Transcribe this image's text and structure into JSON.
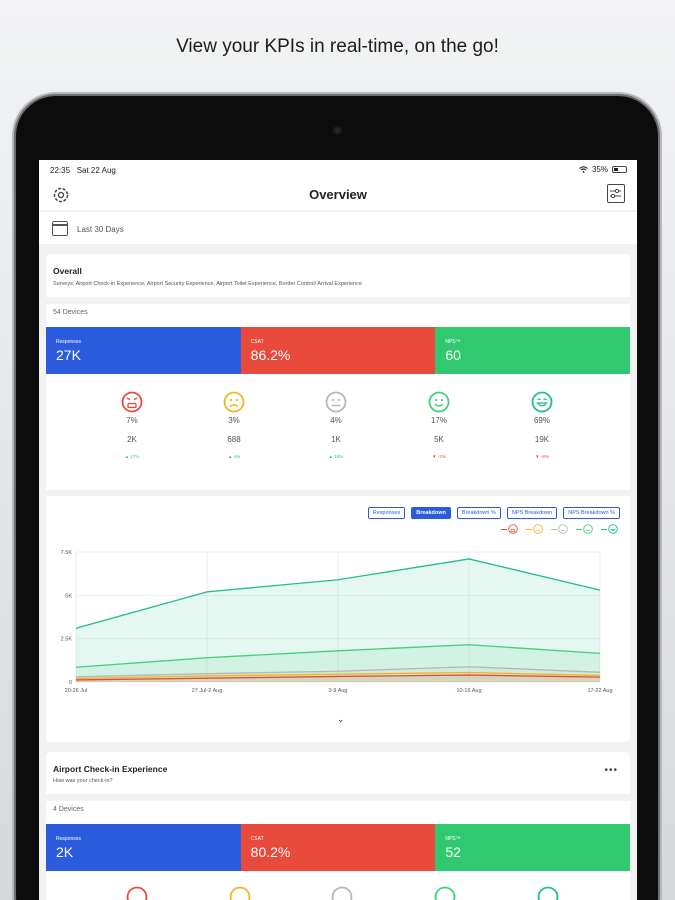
{
  "headline": "View your KPIs in real-time, on the go!",
  "status": {
    "time": "22:35",
    "date": "Sat 22 Aug",
    "battery": "35%"
  },
  "nav": {
    "title": "Overview",
    "left_icon": "gear-icon",
    "right_icon": "filter-icon"
  },
  "date_filter": {
    "label": "Last 30 Days",
    "icon": "calendar-icon"
  },
  "colors": {
    "blue": "#2b5cdd",
    "red": "#e84a3b",
    "green": "#31c96f",
    "face_very_bad": "#e84a3b",
    "face_bad": "#f2b51f",
    "face_neutral": "#b7b7b7",
    "face_good": "#3ed07b",
    "face_very_good": "#1fbf86"
  },
  "overall": {
    "title": "Overall",
    "surveys": "Surveys: Airport Check-in Experience, Airport Security Experience, Airport Toilet Experience, Border Control/ Arrival Experience",
    "devices": "54 Devices",
    "kpis": [
      {
        "label": "Responses",
        "value": "27K"
      },
      {
        "label": "CSAT",
        "value": "86.2%"
      },
      {
        "label": "NPS™",
        "value": "60"
      }
    ],
    "faces": [
      {
        "icon": "very-unhappy-face-icon",
        "pct": "7%",
        "count": "2K",
        "trend": "▲ 17%",
        "dir": "up"
      },
      {
        "icon": "unhappy-face-icon",
        "pct": "3%",
        "count": "688",
        "trend": "▲ 4%",
        "dir": "up"
      },
      {
        "icon": "neutral-face-icon",
        "pct": "4%",
        "count": "1K",
        "trend": "▲ 18%",
        "dir": "up"
      },
      {
        "icon": "happy-face-icon",
        "pct": "17%",
        "count": "5K",
        "trend": "▼ -2%",
        "dir": "down"
      },
      {
        "icon": "very-happy-face-icon",
        "pct": "69%",
        "count": "19K",
        "trend": "▼ -8%",
        "dir": "down"
      }
    ],
    "tabs": [
      "Responses",
      "Breakdown",
      "Breakdown %",
      "NPS Breakdown",
      "NPS Breakdown %"
    ],
    "active_tab": "Breakdown"
  },
  "chart_data": {
    "type": "area",
    "categories": [
      "20-26 Jul",
      "27 Jul-2 Aug",
      "3-9 Aug",
      "10-16 Aug",
      "17-22 Aug"
    ],
    "y_ticks": [
      "0",
      "2.5K",
      "5K",
      "7.5K"
    ],
    "ylim": [
      0,
      7500
    ],
    "grid": true,
    "legend_position": "top-right",
    "series": [
      {
        "values": [
          3100,
          5200,
          5900,
          7100,
          5300
        ],
        "color": "#1fbf86"
      },
      {
        "values": [
          850,
          1400,
          1800,
          2150,
          1650
        ],
        "color": "#3ed07b"
      },
      {
        "values": [
          300,
          480,
          620,
          880,
          560
        ],
        "color": "#b7b7b7"
      },
      {
        "values": [
          200,
          350,
          450,
          550,
          380
        ],
        "color": "#f2b51f"
      },
      {
        "values": [
          120,
          220,
          320,
          400,
          280
        ],
        "color": "#e84a3b"
      }
    ]
  },
  "checkin": {
    "title": "Airport Check-in Experience",
    "question": "How was your check-in?",
    "devices": "4 Devices",
    "more": "•••",
    "kpis": [
      {
        "label": "Responses",
        "value": "2K"
      },
      {
        "label": "CSAT",
        "value": "80.2%"
      },
      {
        "label": "NPS™",
        "value": "52"
      }
    ]
  }
}
